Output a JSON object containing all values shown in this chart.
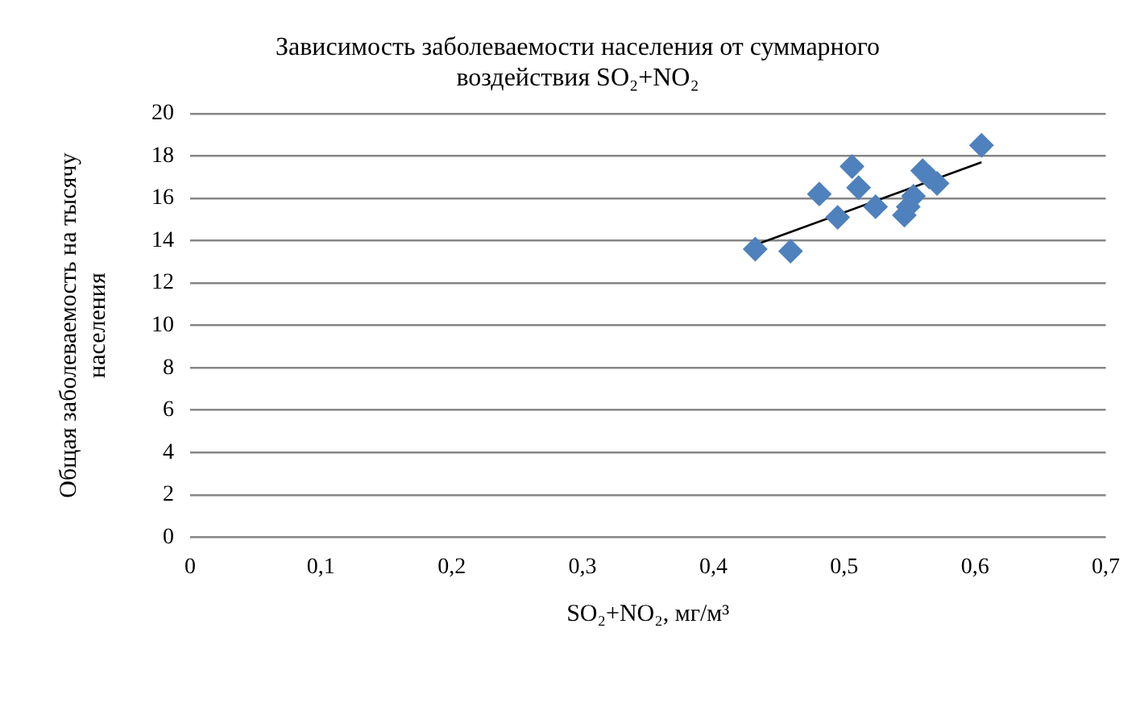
{
  "chart_data": {
    "type": "scatter",
    "title": "Зависимость заболеваемости населения от суммарного воздействия SO₂+NO₂",
    "xlabel": "SO₂+NO₂, мг/м³",
    "ylabel": "Общая заболеваемость на тысячу населения",
    "series": [
      {
        "type": "scatter",
        "color": "#4f81bd",
        "marker": "diamond",
        "x": [
          0.432,
          0.459,
          0.481,
          0.495,
          0.506,
          0.511,
          0.524,
          0.546,
          0.549,
          0.553,
          0.56,
          0.565,
          0.571,
          0.605
        ],
        "values": [
          13.6,
          13.5,
          16.2,
          15.1,
          17.5,
          16.5,
          15.6,
          15.2,
          15.6,
          16.1,
          17.3,
          17.0,
          16.7,
          18.5
        ]
      },
      {
        "type": "line",
        "color": "#000000",
        "marker": "none",
        "x": [
          0.432,
          0.605
        ],
        "values": [
          13.8,
          17.7
        ]
      }
    ],
    "xlim": [
      0,
      0.7
    ],
    "xticks": [
      0,
      {
        "value": 0.1,
        "label": "0,1"
      },
      {
        "value": 0.2,
        "label": "0,2"
      },
      {
        "value": 0.3,
        "label": "0,3"
      },
      {
        "value": 0.4,
        "label": "0,4"
      },
      {
        "value": 0.5,
        "label": "0,5"
      },
      {
        "value": 0.6,
        "label": "0,6"
      },
      {
        "value": 0.7,
        "label": "0,7"
      }
    ],
    "ylim": [
      0,
      20
    ],
    "yticks": [
      0,
      2,
      4,
      6,
      8,
      10,
      12,
      14,
      16,
      18,
      20
    ],
    "grid": "y",
    "legend": false
  }
}
